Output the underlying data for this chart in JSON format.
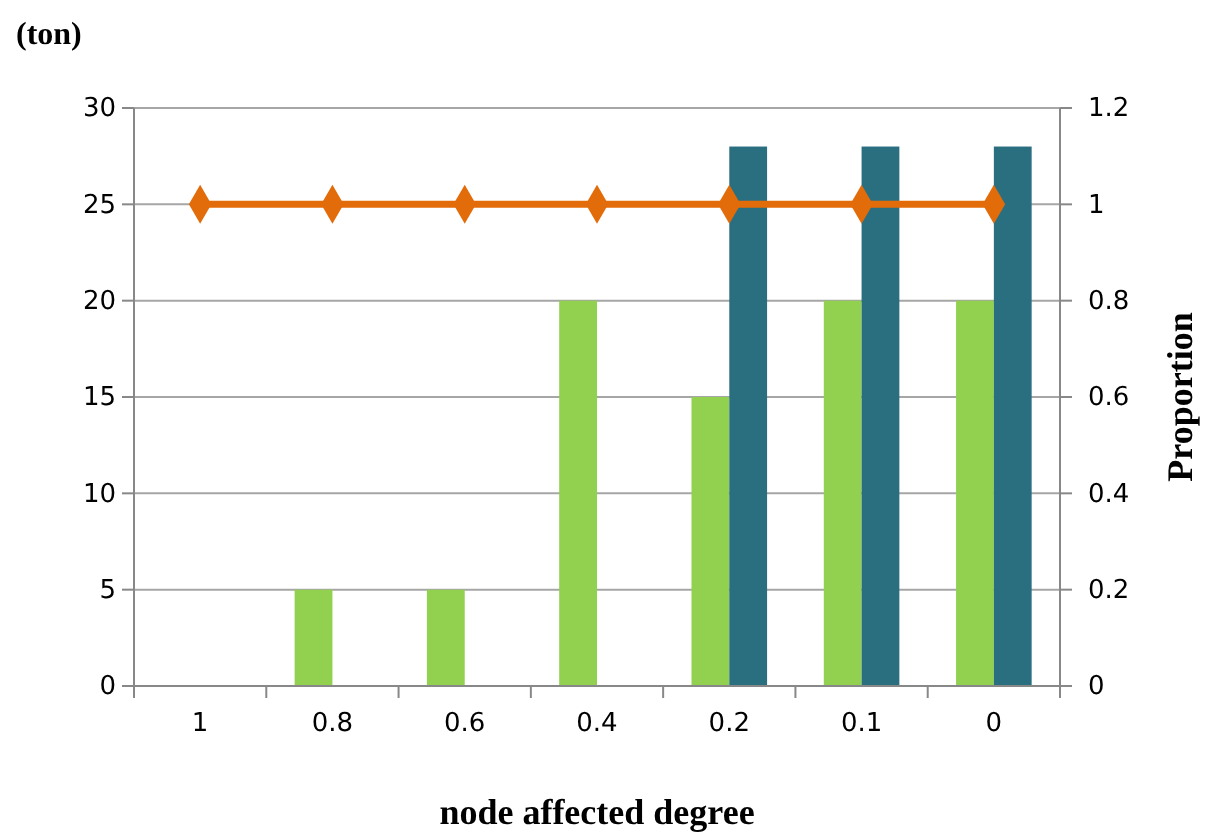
{
  "chart_data": {
    "type": "bar",
    "ylabel": "(ton)",
    "y2label": "Proportion",
    "xlabel": "node affected degree",
    "categories": [
      "1",
      "0.8",
      "0.6",
      "0.4",
      "0.2",
      "0.1",
      "0"
    ],
    "series": [
      {
        "color": "#92d050",
        "values": [
          0,
          5,
          5,
          20,
          15,
          20,
          20
        ]
      },
      {
        "color": "#2a6f80",
        "values": [
          0,
          0,
          0,
          0,
          28,
          28,
          28
        ]
      },
      {
        "type": "line",
        "axis": "y2",
        "color": "#e36c0a",
        "marker": "diamond",
        "values": [
          1,
          1,
          1,
          1,
          1,
          1,
          1
        ]
      }
    ],
    "ylim": [
      0,
      30
    ],
    "yticks": [
      0,
      5,
      10,
      15,
      20,
      25,
      30
    ],
    "y2lim": [
      0,
      1.2
    ],
    "y2ticks": [
      0,
      0.2,
      0.4,
      0.6,
      0.8,
      1,
      1.2
    ],
    "grid": "y"
  }
}
